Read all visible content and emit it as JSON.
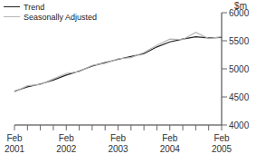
{
  "chart_data": {
    "type": "line",
    "y_label": "$m",
    "categories": [
      "Feb 2001",
      null,
      null,
      null,
      "Feb 2002",
      null,
      null,
      null,
      "Feb 2003",
      null,
      null,
      null,
      "Feb 2004",
      null,
      null,
      null,
      "Feb 2005"
    ],
    "series": [
      {
        "name": "Trend",
        "color": "#222222",
        "values": [
          4600,
          4680,
          4730,
          4800,
          4890,
          4960,
          5050,
          5110,
          5170,
          5220,
          5270,
          5390,
          5480,
          5530,
          5570,
          5550,
          5560
        ]
      },
      {
        "name": "Seasonally Adjusted",
        "color": "#b4b4b4",
        "values": [
          4590,
          4700,
          4720,
          4820,
          4920,
          4950,
          5060,
          5100,
          5180,
          5200,
          5290,
          5420,
          5530,
          5520,
          5650,
          5540,
          5570
        ]
      }
    ],
    "ylim": [
      4000,
      6000
    ],
    "yticks": [
      4000,
      4500,
      5000,
      5500,
      6000
    ],
    "legend": "top-left"
  }
}
